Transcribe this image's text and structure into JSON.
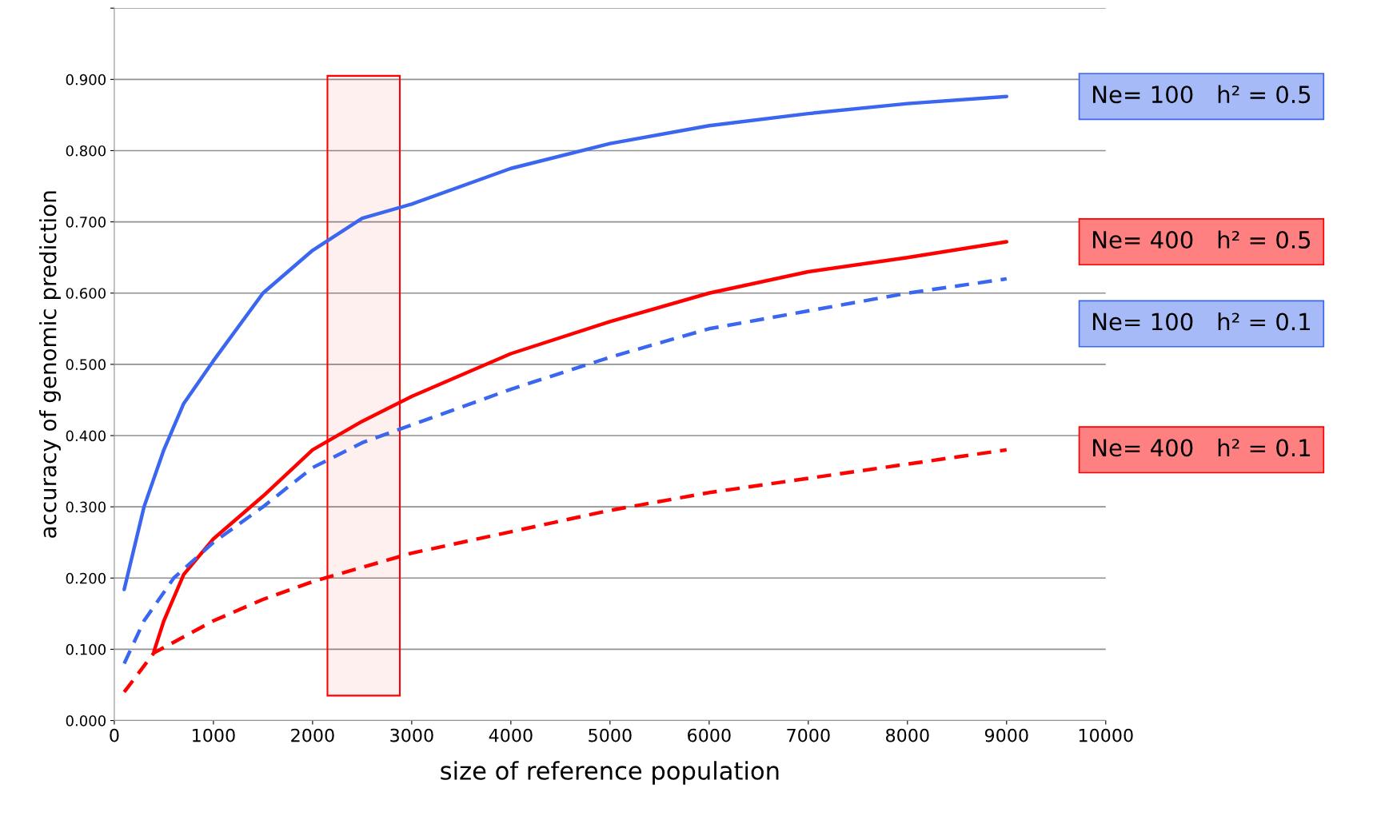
{
  "chart_data": {
    "type": "line",
    "xlabel": "size of reference population",
    "ylabel": "accuracy of genomic prediction",
    "xlim": [
      0,
      10000
    ],
    "xticks": [
      0,
      1000,
      2000,
      3000,
      4000,
      5000,
      6000,
      7000,
      8000,
      9000,
      10000
    ],
    "ylim": [
      0,
      1.0
    ],
    "yticks": [
      {
        "value": 0,
        "label": "0.000"
      },
      {
        "value": 0.1,
        "label": "0.100"
      },
      {
        "value": 0.2,
        "label": "0.200"
      },
      {
        "value": 0.3,
        "label": "0.300"
      },
      {
        "value": 0.4,
        "label": "0.400"
      },
      {
        "value": 0.5,
        "label": "0.500"
      },
      {
        "value": 0.6,
        "label": "0.600"
      },
      {
        "value": 0.7,
        "label": "0.700"
      },
      {
        "value": 0.8,
        "label": "0.800"
      },
      {
        "value": 0.9,
        "label": "0.900"
      },
      {
        "value": 1.0,
        "label": null
      }
    ],
    "grid": "y",
    "legend": false,
    "bands": [
      {
        "axis": "x",
        "from": 2150,
        "to": 2880,
        "color": "#ff0000"
      }
    ],
    "series": [
      {
        "name": "Ne= 100   h² = 0.5",
        "color": "#3a66f0",
        "line_style": "solid",
        "x": [
          100,
          300,
          500,
          700,
          1000,
          1500,
          2000,
          2500,
          3000,
          4000,
          5000,
          6000,
          7000,
          8000,
          9000
        ],
        "values": [
          0.184,
          0.3,
          0.38,
          0.445,
          0.505,
          0.6,
          0.66,
          0.705,
          0.725,
          0.775,
          0.81,
          0.835,
          0.852,
          0.866,
          0.876
        ]
      },
      {
        "name": "Ne= 400   h² = 0.5",
        "color": "#ff0000",
        "line_style": "solid",
        "x": [
          400,
          500,
          700,
          1000,
          1500,
          2000,
          2500,
          3000,
          4000,
          5000,
          6000,
          7000,
          8000,
          9000
        ],
        "values": [
          0.097,
          0.14,
          0.205,
          0.255,
          0.315,
          0.38,
          0.42,
          0.455,
          0.515,
          0.56,
          0.6,
          0.63,
          0.65,
          0.672
        ]
      },
      {
        "name": "Ne= 100   h² = 0.1",
        "color": "#3a66f0",
        "line_style": "dashed",
        "x": [
          100,
          300,
          600,
          1000,
          1500,
          2000,
          2500,
          3000,
          4000,
          5000,
          6000,
          7000,
          8000,
          9000
        ],
        "values": [
          0.08,
          0.14,
          0.2,
          0.25,
          0.3,
          0.355,
          0.39,
          0.415,
          0.465,
          0.51,
          0.55,
          0.575,
          0.6,
          0.62
        ]
      },
      {
        "name": "Ne= 400   h² = 0.1",
        "color": "#ff0000",
        "line_style": "dashed",
        "x": [
          100,
          400,
          1000,
          1500,
          2000,
          2500,
          3000,
          4000,
          5000,
          6000,
          7000,
          8000,
          9000
        ],
        "values": [
          0.04,
          0.095,
          0.14,
          0.17,
          0.195,
          0.215,
          0.235,
          0.265,
          0.295,
          0.32,
          0.34,
          0.36,
          0.38
        ]
      }
    ]
  }
}
